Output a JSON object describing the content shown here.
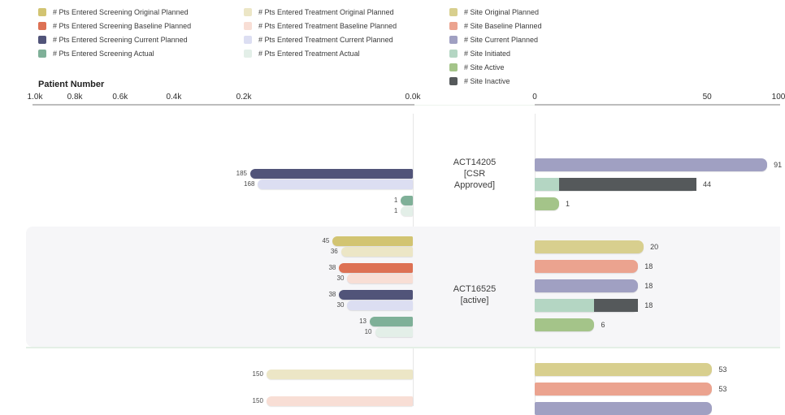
{
  "series_colors": {
    "pts-screening-original-planned": "#d2c472",
    "pts-treatment-original-planned": "#ece6c6",
    "pts-screening-baseline-planned": "#dd7154",
    "pts-treatment-baseline-planned": "#f8ded5",
    "pts-screening-current-planned": "#515479",
    "pts-treatment-current-planned": "#dcdef2",
    "pts-screening-actual": "#7fb098",
    "pts-treatment-actual": "#e3efe8",
    "site-original-planned": "#d8cf8e",
    "site-baseline-planned": "#eba38f",
    "site-current-planned": "#a0a0c2",
    "site-initiated": "#b4d6c3",
    "site-active": "#a4c489",
    "site-inactive": "#55595b"
  },
  "colors": {
    "highlight_row": "#f6f6f8",
    "axis_line": "#bdbdbd",
    "gridline": "#e6e6e6",
    "separator": "#e4efe6"
  },
  "legend": {
    "columns": [
      {
        "items": [
          {
            "series": "pts-screening-original-planned",
            "label": "# Pts Entered Screening Original Planned"
          },
          {
            "series": "pts-screening-baseline-planned",
            "label": "# Pts Entered Screening Baseline Planned"
          },
          {
            "series": "pts-screening-current-planned",
            "label": "# Pts Entered Screening Current Planned"
          },
          {
            "series": "pts-screening-actual",
            "label": "# Pts Entered Screening Actual"
          }
        ]
      },
      {
        "items": [
          {
            "series": "pts-treatment-original-planned",
            "label": "# Pts Entered Treatment Original Planned"
          },
          {
            "series": "pts-treatment-baseline-planned",
            "label": "# Pts Entered Treatment Baseline Planned"
          },
          {
            "series": "pts-treatment-current-planned",
            "label": "# Pts Entered Treatment Current Planned"
          },
          {
            "series": "pts-treatment-actual",
            "label": "# Pts Entered Treatment Actual"
          }
        ]
      },
      {
        "items": [
          {
            "series": "site-original-planned",
            "label": "# Site Original Planned"
          },
          {
            "series": "site-baseline-planned",
            "label": "# Site Baseline Planned"
          },
          {
            "series": "site-current-planned",
            "label": "# Site Current Planned"
          },
          {
            "series": "site-initiated",
            "label": "# Site Initiated"
          },
          {
            "series": "site-active",
            "label": "# Site Active"
          },
          {
            "series": "site-inactive",
            "label": "# Site Inactive"
          }
        ]
      }
    ]
  },
  "chart_data": {
    "type": "bar",
    "layout": "butterfly",
    "left_chart": {
      "title": "Patient Number",
      "scale": "sqrt",
      "xlim": [
        1000,
        0
      ],
      "ticks": [
        {
          "label": "1.0k",
          "value": 1000
        },
        {
          "label": "0.8k",
          "value": 800
        },
        {
          "label": "0.6k",
          "value": 600
        },
        {
          "label": "0.4k",
          "value": 400
        },
        {
          "label": "0.2k",
          "value": 200
        },
        {
          "label": "0.0k",
          "value": 0
        }
      ]
    },
    "right_chart": {
      "title": "",
      "scale": "sqrt",
      "xlim": [
        0,
        100
      ],
      "ticks": [
        {
          "label": "0",
          "value": 0
        },
        {
          "label": "50",
          "value": 50
        },
        {
          "label": "100",
          "value": 100
        }
      ]
    },
    "rows": [
      {
        "study_lines": [
          "ACT14205",
          "[CSR",
          "Approved]"
        ],
        "highlighted": false,
        "left_bars": [
          {
            "series": "pts-screening-current-planned",
            "slot": 4,
            "value": 185,
            "label": "185"
          },
          {
            "series": "pts-treatment-current-planned",
            "slot": 5,
            "value": 168,
            "label": "168"
          },
          {
            "series": "pts-screening-actual",
            "slot": 6,
            "value": 1,
            "label": "1"
          },
          {
            "series": "pts-treatment-actual",
            "slot": 7,
            "value": 1,
            "label": "1"
          }
        ],
        "right_bars": [
          {
            "series": "site-current-planned",
            "slot": 2,
            "value": 91,
            "label": "91"
          },
          {
            "slot": 3,
            "label": "44",
            "segments": [
              {
                "series": "site-initiated",
                "from": 0,
                "to": 1
              },
              {
                "series": "site-inactive",
                "from": 1,
                "to": 44
              }
            ]
          },
          {
            "series": "site-active",
            "slot": 4,
            "value": 1,
            "label": "1"
          }
        ]
      },
      {
        "study_lines": [
          "ACT16525",
          "[active]"
        ],
        "highlighted": true,
        "left_bars": [
          {
            "series": "pts-screening-original-planned",
            "slot": 0,
            "value": 45,
            "label": "45"
          },
          {
            "series": "pts-treatment-original-planned",
            "slot": 1,
            "value": 36,
            "label": "36"
          },
          {
            "series": "pts-screening-baseline-planned",
            "slot": 2,
            "value": 38,
            "label": "38"
          },
          {
            "series": "pts-treatment-baseline-planned",
            "slot": 3,
            "value": 30,
            "label": "30"
          },
          {
            "series": "pts-screening-current-planned",
            "slot": 4,
            "value": 38,
            "label": "38"
          },
          {
            "series": "pts-treatment-current-planned",
            "slot": 5,
            "value": 30,
            "label": "30"
          },
          {
            "series": "pts-screening-actual",
            "slot": 6,
            "value": 13,
            "label": "13"
          },
          {
            "series": "pts-treatment-actual",
            "slot": 7,
            "value": 10,
            "label": "10"
          }
        ],
        "right_bars": [
          {
            "series": "site-original-planned",
            "slot": 0,
            "value": 20,
            "label": "20"
          },
          {
            "series": "site-baseline-planned",
            "slot": 1,
            "value": 18,
            "label": "18"
          },
          {
            "series": "site-current-planned",
            "slot": 2,
            "value": 18,
            "label": "18"
          },
          {
            "slot": 3,
            "label": "18",
            "segments": [
              {
                "series": "site-initiated",
                "from": 0,
                "to": 6
              },
              {
                "series": "site-inactive",
                "from": 6,
                "to": 18
              }
            ]
          },
          {
            "series": "site-active",
            "slot": 4,
            "value": 6,
            "label": "6"
          }
        ]
      },
      {
        "study_lines": [],
        "highlighted": false,
        "left_bars": [
          {
            "series": "pts-treatment-original-planned",
            "slot": 1,
            "value": 150,
            "label": "150"
          },
          {
            "series": "pts-treatment-baseline-planned",
            "slot": 3,
            "value": 150,
            "label": "150"
          }
        ],
        "right_bars": [
          {
            "series": "site-original-planned",
            "slot": 0,
            "value": 53,
            "label": "53"
          },
          {
            "series": "site-baseline-planned",
            "slot": 1,
            "value": 53,
            "label": "53"
          },
          {
            "series": "site-current-planned",
            "slot": 2,
            "value": 53,
            "label": ""
          }
        ]
      }
    ]
  }
}
